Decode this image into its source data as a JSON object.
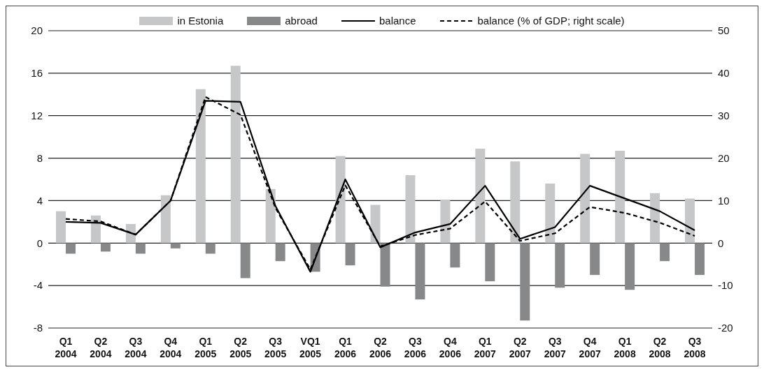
{
  "chart_data": {
    "type": "bar",
    "categories": [
      "Q1 2004",
      "Q2 2004",
      "Q3 2004",
      "Q4 2004",
      "Q1 2005",
      "Q2 2005",
      "Q3 2005",
      "VQ1 2005",
      "Q1 2006",
      "Q2 2006",
      "Q3 2006",
      "Q4 2006",
      "Q1 2007",
      "Q2 2007",
      "Q3 2007",
      "Q4 2007",
      "Q1 2008",
      "Q2 2008",
      "Q3 2008"
    ],
    "series": [
      {
        "name": "in Estonia",
        "color": "#c6c7c9",
        "values": [
          3.0,
          2.6,
          1.8,
          4.5,
          14.5,
          16.7,
          5.1,
          null,
          8.2,
          3.6,
          6.4,
          4.1,
          8.9,
          7.7,
          5.6,
          8.4,
          8.7,
          4.7,
          4.2
        ]
      },
      {
        "name": "abroad",
        "color": "#87888a",
        "values": [
          -1.0,
          -0.8,
          -1.0,
          -0.5,
          -1.0,
          -3.3,
          -1.7,
          -2.7,
          -2.1,
          -4.1,
          -5.3,
          -2.3,
          -3.6,
          -7.3,
          -4.2,
          -3.0,
          -4.4,
          -1.7,
          -3.0
        ]
      },
      {
        "name": "balance",
        "type": "line",
        "color": "#000000",
        "line_style": "solid",
        "values": [
          2.0,
          1.9,
          0.8,
          4.0,
          13.4,
          13.3,
          3.5,
          -2.7,
          6.0,
          -0.4,
          1.0,
          1.8,
          5.4,
          0.4,
          1.5,
          5.4,
          4.2,
          3.0,
          1.2
        ]
      },
      {
        "name": "balance (% of GDP; right scale)",
        "type": "line",
        "axis": "y2",
        "color": "#000000",
        "line_style": "dashed",
        "values": [
          5.7,
          5.1,
          2.0,
          10.0,
          34.4,
          30.2,
          8.3,
          -6.2,
          13.6,
          -0.8,
          1.9,
          3.4,
          9.8,
          0.5,
          2.3,
          8.5,
          7.1,
          4.8,
          1.7
        ]
      }
    ],
    "ylim": [
      -8,
      20
    ],
    "yticks": [
      -8,
      -4,
      0,
      4,
      8,
      12,
      16,
      20
    ],
    "y2lim": [
      -20,
      50
    ],
    "y2ticks": [
      -20,
      -10,
      0,
      10,
      20,
      30,
      40,
      50
    ],
    "grid": "y",
    "legend": "top",
    "marker": "none"
  }
}
